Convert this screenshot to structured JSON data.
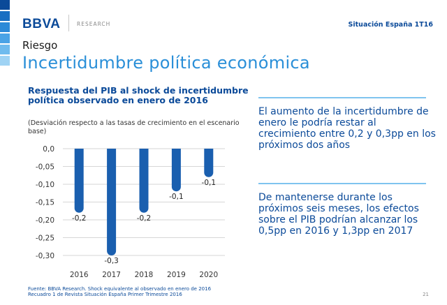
{
  "brand": {
    "logo": "BBVA",
    "unit": "RESEARCH",
    "publication": "Situación España 1T16",
    "stripe_colors": [
      "#0b4a99",
      "#1a6fc2",
      "#2d8ad8",
      "#4aa3e6",
      "#6fbbee",
      "#9fd3f4"
    ]
  },
  "section": "Riesgo",
  "title": "Incertidumbre política económica",
  "colors": {
    "bar": "#1a5faf",
    "grid": "#d6d6d6",
    "accent": "#7fc4ef",
    "title": "#2a8fd8"
  },
  "chart_data": {
    "type": "bar",
    "title": "Respuesta del PIB al shock de incertidumbre política observado en enero de 2016",
    "subtitle": "(Desviación respecto a las tasas de crecimiento en el escenario base)",
    "categories": [
      "2016",
      "2017",
      "2018",
      "2019",
      "2020"
    ],
    "values": [
      -0.18,
      -0.3,
      -0.18,
      -0.12,
      -0.08
    ],
    "data_labels": [
      "-0,2",
      "-0,3",
      "-0,2",
      "-0,1",
      "-0,1"
    ],
    "y_ticks": [
      "0,0",
      "-0,05",
      "-0,10",
      "-0,15",
      "-0,20",
      "-0,25",
      "-0,30"
    ],
    "ylim": [
      -0.3,
      0
    ],
    "grid": true,
    "xlabel": "",
    "ylabel": ""
  },
  "text_blocks": [
    "El aumento de la incertidumbre de enero le podría restar al crecimiento entre 0,2 y 0,3pp en los próximos dos años",
    "De mantenerse durante los próximos seis meses, los efectos sobre el PIB podrían alcanzar los 0,5pp en 2016 y 1,3pp en 2017"
  ],
  "footer": {
    "source": "Fuente: BBVA Research. Shock equivalente al observado en enero de 2016",
    "note": "Recuadro 1 de Revista Situación España Primer Trimestre 2016"
  },
  "page_number": "21"
}
